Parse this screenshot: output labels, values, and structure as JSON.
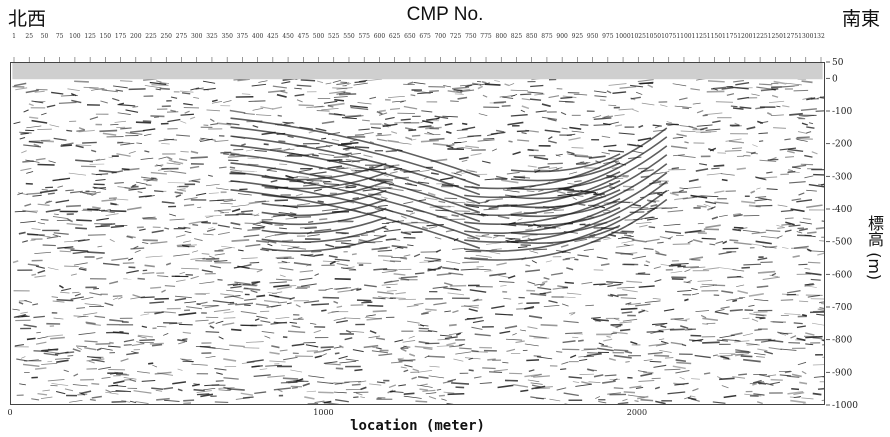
{
  "chart_data": {
    "type": "heatmap",
    "title": "CMP  No.",
    "corner_left": "北西",
    "corner_right": "南東",
    "xlabel": "location (meter)",
    "ylabel": "標高 (m)",
    "xlim": [
      0,
      2600
    ],
    "ylim": [
      -1000,
      50
    ],
    "x_ticks": [
      0,
      1000,
      2000
    ],
    "y_ticks": [
      50,
      0,
      -100,
      -200,
      -300,
      -400,
      -500,
      -600,
      -700,
      -800,
      -900,
      -1000
    ],
    "y_tick_labels": [
      "50",
      "0",
      "-100",
      "-200",
      "-300",
      "-400",
      "-500",
      "-600",
      "-700",
      "-800",
      "-900",
      "-1000"
    ],
    "cmp_labels": [
      "1",
      "25",
      "50",
      "75",
      "100",
      "125",
      "150",
      "175",
      "200",
      "225",
      "250",
      "275",
      "300",
      "325",
      "350",
      "375",
      "400",
      "425",
      "450",
      "475",
      "500",
      "525",
      "550",
      "575",
      "600",
      "625",
      "650",
      "675",
      "700",
      "725",
      "750",
      "775",
      "800",
      "825",
      "850",
      "875",
      "900",
      "925",
      "950",
      "975",
      "1000",
      "1025",
      "1050",
      "1075",
      "1100",
      "1125",
      "1150",
      "1175",
      "1200",
      "1225",
      "1250",
      "1275",
      "1300",
      "1325"
    ],
    "colors": {
      "trace": "#1a1a1a",
      "background": "#ffffff",
      "topo": "#cfcfcf"
    }
  }
}
